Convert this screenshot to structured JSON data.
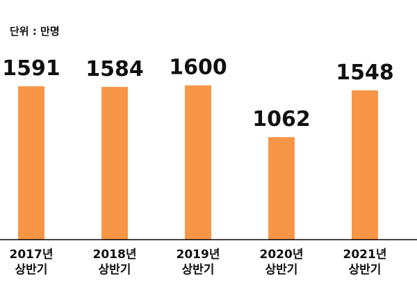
{
  "unit_label": "단위 : 만명",
  "colors": {
    "bar": "#F79646",
    "axis": "#000000",
    "text": "#111111",
    "background": "#FFFFFF"
  },
  "chart_data": {
    "type": "bar",
    "title": "",
    "xlabel": "",
    "ylabel": "",
    "categories": [
      [
        "2017년",
        "상반기"
      ],
      [
        "2018년",
        "상반기"
      ],
      [
        "2019년",
        "상반기"
      ],
      [
        "2020년",
        "상반기"
      ],
      [
        "2021년",
        "상반기"
      ]
    ],
    "values": [
      1591,
      1584,
      1600,
      1062,
      1548
    ],
    "value_labels": [
      "1591",
      "1584",
      "1600",
      "1062",
      "1548"
    ],
    "ylim": [
      0,
      1764
    ],
    "grid": false,
    "legend": "none"
  }
}
